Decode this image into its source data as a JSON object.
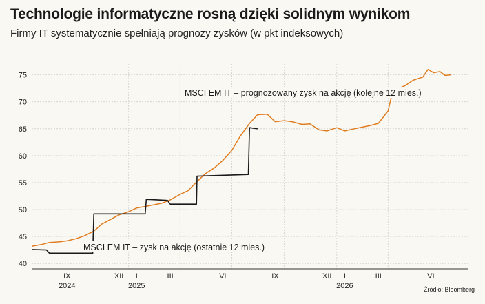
{
  "header": {
    "title": "Technologie informatyczne rosną dzięki solidnym wynikom",
    "subtitle": "Firmy IT systematycznie spełniają prognozy zysków (w pkt indeksowych)"
  },
  "footer": {
    "source": "Źródło: Bloomberg"
  },
  "chart_data": {
    "type": "line",
    "title": "Technologie informatyczne rosną dzięki solidnym wynikom",
    "subtitle": "Firmy IT systematycznie spełniają prognozy zysków (w pkt indeksowych)",
    "xlabel": "",
    "ylabel": "",
    "ylim": [
      39,
      77
    ],
    "xlim": [
      "2024-07-15",
      "2026-08-20"
    ],
    "y_ticks": [
      40,
      45,
      50,
      55,
      60,
      65,
      70,
      75
    ],
    "grid": true,
    "x_month_ticks": [
      {
        "label": "IX",
        "date": "2024-09-15"
      },
      {
        "label": "XII",
        "date": "2024-12-15"
      },
      {
        "label": "I",
        "date": "2025-01-15"
      },
      {
        "label": "III",
        "date": "2025-03-15"
      },
      {
        "label": "VI",
        "date": "2025-06-15"
      },
      {
        "label": "IX",
        "date": "2025-09-15"
      },
      {
        "label": "XII",
        "date": "2025-12-15"
      },
      {
        "label": "I",
        "date": "2026-01-15"
      },
      {
        "label": "III",
        "date": "2026-03-15"
      },
      {
        "label": "VI",
        "date": "2026-06-15"
      }
    ],
    "x_year_labels": [
      {
        "label": "2024",
        "date": "2024-09-15"
      },
      {
        "label": "2025",
        "date": "2025-01-15"
      },
      {
        "label": "2026",
        "date": "2026-01-15"
      }
    ],
    "x_gridlines": [
      "2024-10-01",
      "2025-01-01",
      "2025-04-01",
      "2025-07-01",
      "2025-10-01",
      "2026-01-01",
      "2026-04-01",
      "2026-07-01"
    ],
    "colors": {
      "forward": "#e07c1e",
      "trailing": "#1a1a1a",
      "grid": "#cfcfcf"
    },
    "series": [
      {
        "name": "MSCI EM IT – prognozowany zysk na akcję (kolejne 12 mies.)",
        "color": "#e07c1e",
        "points": [
          [
            "2024-07-15",
            43.2
          ],
          [
            "2024-08-01",
            43.5
          ],
          [
            "2024-08-15",
            43.9
          ],
          [
            "2024-09-01",
            44.0
          ],
          [
            "2024-09-15",
            44.2
          ],
          [
            "2024-10-01",
            44.6
          ],
          [
            "2024-10-15",
            45.1
          ],
          [
            "2024-11-01",
            46.0
          ],
          [
            "2024-11-15",
            47.3
          ],
          [
            "2024-12-01",
            48.2
          ],
          [
            "2024-12-15",
            49.0
          ],
          [
            "2025-01-01",
            49.6
          ],
          [
            "2025-01-15",
            50.3
          ],
          [
            "2025-02-01",
            50.6
          ],
          [
            "2025-02-15",
            50.9
          ],
          [
            "2025-03-01",
            51.2
          ],
          [
            "2025-03-15",
            51.8
          ],
          [
            "2025-04-01",
            52.8
          ],
          [
            "2025-04-15",
            53.5
          ],
          [
            "2025-05-01",
            55.2
          ],
          [
            "2025-05-15",
            56.6
          ],
          [
            "2025-06-01",
            57.8
          ],
          [
            "2025-06-15",
            59.1
          ],
          [
            "2025-07-01",
            61.0
          ],
          [
            "2025-07-15",
            63.5
          ],
          [
            "2025-08-01",
            66.0
          ],
          [
            "2025-08-15",
            67.6
          ],
          [
            "2025-09-01",
            67.7
          ],
          [
            "2025-09-15",
            66.3
          ],
          [
            "2025-10-01",
            66.5
          ],
          [
            "2025-10-15",
            66.3
          ],
          [
            "2025-11-01",
            65.8
          ],
          [
            "2025-11-15",
            65.9
          ],
          [
            "2025-12-01",
            64.8
          ],
          [
            "2025-12-15",
            64.6
          ],
          [
            "2026-01-01",
            65.2
          ],
          [
            "2026-01-15",
            64.6
          ],
          [
            "2026-02-01",
            65.0
          ],
          [
            "2026-02-15",
            65.3
          ],
          [
            "2026-03-01",
            65.6
          ],
          [
            "2026-03-15",
            66.0
          ],
          [
            "2026-04-01",
            68.3
          ],
          [
            "2026-04-08",
            71.5
          ],
          [
            "2026-04-15",
            72.3
          ],
          [
            "2026-05-01",
            73.0
          ],
          [
            "2026-05-15",
            74.0
          ],
          [
            "2026-06-01",
            74.6
          ],
          [
            "2026-06-10",
            76.0
          ],
          [
            "2026-06-20",
            75.4
          ],
          [
            "2026-07-01",
            75.6
          ],
          [
            "2026-07-10",
            74.9
          ],
          [
            "2026-07-20",
            75.0
          ]
        ]
      },
      {
        "name": "MSCI EM IT – zysk na akcję (ostatnie 12 mies.)",
        "color": "#1a1a1a",
        "points": [
          [
            "2024-07-15",
            42.6
          ],
          [
            "2024-08-10",
            42.5
          ],
          [
            "2024-08-15",
            41.9
          ],
          [
            "2024-10-30",
            41.9
          ],
          [
            "2024-11-01",
            49.2
          ],
          [
            "2025-01-30",
            49.2
          ],
          [
            "2025-02-01",
            51.9
          ],
          [
            "2025-03-10",
            51.7
          ],
          [
            "2025-03-15",
            51.0
          ],
          [
            "2025-04-30",
            51.0
          ],
          [
            "2025-05-01",
            56.2
          ],
          [
            "2025-07-30",
            56.5
          ],
          [
            "2025-08-01",
            65.2
          ],
          [
            "2025-08-15",
            65.0
          ]
        ]
      }
    ],
    "annotations": [
      {
        "text": "MSCI EM IT – prognozowany zysk na akcję (kolejne 12 mies.)",
        "series": 0
      },
      {
        "text": "MSCI EM IT – zysk na akcję (ostatnie 12 mies.)",
        "series": 1
      }
    ]
  }
}
